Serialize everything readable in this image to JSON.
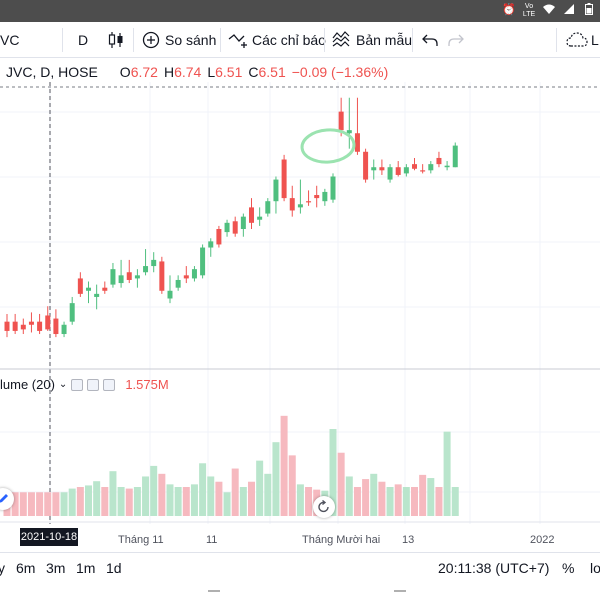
{
  "status_bar": {
    "time": "",
    "icons": [
      "alarm-icon",
      "wifi-icon",
      "lte-signal-icon",
      "battery-icon"
    ],
    "network_tag": "Vo LTE"
  },
  "toolbar": {
    "symbol": "VC",
    "interval": "D",
    "compare_label": "So sánh",
    "indicators_label": "Các chỉ báo",
    "templates_label": "Bản mẫu",
    "right_partial": "L"
  },
  "legend": {
    "title": "JVC, D, HOSE",
    "o_key": "O",
    "o_val": "6.72",
    "h_key": "H",
    "h_val": "6.74",
    "l_key": "L",
    "l_val": "6.51",
    "c_key": "C",
    "c_val": "6.51",
    "change": "−0.09 (−1.36%)"
  },
  "volume_legend": {
    "label": "lume (20)",
    "value": "1.575M"
  },
  "time_axis": {
    "crosshair_date": "2021-10-18",
    "labels": [
      "Tháng 11",
      "11",
      "Tháng Mười hai",
      "13",
      "2022"
    ]
  },
  "bottom_bar": {
    "ranges": [
      "y",
      "6m",
      "3m",
      "1m",
      "1d"
    ],
    "clock": "20:11:38 (UTC+7)",
    "percent": "%",
    "log": "lo"
  },
  "colors": {
    "up": "#26a69a",
    "up_fill": "#4fbf7f",
    "down": "#ef5350",
    "vol_up": "#b9e5cc",
    "vol_down": "#f6b9bf",
    "annotation": "#9be3b0"
  },
  "chart_data": {
    "type": "candlestick",
    "candles": [
      {
        "o": 5.5,
        "h": 5.55,
        "l": 5.4,
        "c": 5.44,
        "d": true
      },
      {
        "o": 5.5,
        "h": 5.55,
        "l": 5.42,
        "c": 5.44,
        "d": true
      },
      {
        "o": 5.48,
        "h": 5.52,
        "l": 5.42,
        "c": 5.45,
        "d": true
      },
      {
        "o": 5.5,
        "h": 5.56,
        "l": 5.43,
        "c": 5.48,
        "d": true
      },
      {
        "o": 5.5,
        "h": 5.55,
        "l": 5.42,
        "c": 5.44,
        "d": true
      },
      {
        "o": 5.54,
        "h": 5.6,
        "l": 5.44,
        "c": 5.45,
        "d": true
      },
      {
        "o": 5.52,
        "h": 5.58,
        "l": 5.4,
        "c": 5.42,
        "d": true
      },
      {
        "o": 5.42,
        "h": 5.5,
        "l": 5.4,
        "c": 5.48,
        "d": false
      },
      {
        "o": 5.5,
        "h": 5.66,
        "l": 5.48,
        "c": 5.62,
        "d": false
      },
      {
        "o": 5.78,
        "h": 5.82,
        "l": 5.66,
        "c": 5.68,
        "d": true
      },
      {
        "o": 5.7,
        "h": 5.76,
        "l": 5.62,
        "c": 5.72,
        "d": false
      },
      {
        "o": 5.66,
        "h": 5.74,
        "l": 5.58,
        "c": 5.68,
        "d": false
      },
      {
        "o": 5.72,
        "h": 5.76,
        "l": 5.68,
        "c": 5.7,
        "d": true
      },
      {
        "o": 5.74,
        "h": 5.88,
        "l": 5.72,
        "c": 5.84,
        "d": false
      },
      {
        "o": 5.75,
        "h": 5.9,
        "l": 5.72,
        "c": 5.8,
        "d": false
      },
      {
        "o": 5.82,
        "h": 5.9,
        "l": 5.75,
        "c": 5.77,
        "d": true
      },
      {
        "o": 5.78,
        "h": 5.84,
        "l": 5.72,
        "c": 5.8,
        "d": false
      },
      {
        "o": 5.82,
        "h": 5.97,
        "l": 5.8,
        "c": 5.86,
        "d": false
      },
      {
        "o": 5.86,
        "h": 5.95,
        "l": 5.82,
        "c": 5.9,
        "d": false
      },
      {
        "o": 5.89,
        "h": 5.92,
        "l": 5.68,
        "c": 5.7,
        "d": true
      },
      {
        "o": 5.65,
        "h": 5.8,
        "l": 5.62,
        "c": 5.7,
        "d": false
      },
      {
        "o": 5.72,
        "h": 5.8,
        "l": 5.7,
        "c": 5.77,
        "d": false
      },
      {
        "o": 5.8,
        "h": 5.86,
        "l": 5.75,
        "c": 5.78,
        "d": true
      },
      {
        "o": 5.78,
        "h": 5.86,
        "l": 5.76,
        "c": 5.84,
        "d": false
      },
      {
        "o": 5.8,
        "h": 6.0,
        "l": 5.78,
        "c": 5.98,
        "d": false
      },
      {
        "o": 5.98,
        "h": 6.04,
        "l": 5.92,
        "c": 6.02,
        "d": false
      },
      {
        "o": 6.1,
        "h": 6.12,
        "l": 5.98,
        "c": 6.0,
        "d": true
      },
      {
        "o": 6.08,
        "h": 6.16,
        "l": 6.05,
        "c": 6.14,
        "d": false
      },
      {
        "o": 6.15,
        "h": 6.18,
        "l": 6.05,
        "c": 6.07,
        "d": true
      },
      {
        "o": 6.1,
        "h": 6.2,
        "l": 6.05,
        "c": 6.18,
        "d": false
      },
      {
        "o": 6.24,
        "h": 6.3,
        "l": 6.1,
        "c": 6.14,
        "d": true
      },
      {
        "o": 6.16,
        "h": 6.24,
        "l": 6.12,
        "c": 6.18,
        "d": false
      },
      {
        "o": 6.2,
        "h": 6.3,
        "l": 6.18,
        "c": 6.28,
        "d": false
      },
      {
        "o": 6.28,
        "h": 6.44,
        "l": 6.2,
        "c": 6.42,
        "d": false
      },
      {
        "o": 6.55,
        "h": 6.58,
        "l": 6.28,
        "c": 6.3,
        "d": true
      },
      {
        "o": 6.3,
        "h": 6.38,
        "l": 6.18,
        "c": 6.22,
        "d": true
      },
      {
        "o": 6.24,
        "h": 6.42,
        "l": 6.2,
        "c": 6.26,
        "d": false
      },
      {
        "o": 6.28,
        "h": 6.35,
        "l": 6.25,
        "c": 6.28,
        "d": true
      },
      {
        "o": 6.32,
        "h": 6.38,
        "l": 6.24,
        "c": 6.3,
        "d": true
      },
      {
        "o": 6.28,
        "h": 6.36,
        "l": 6.25,
        "c": 6.34,
        "d": false
      },
      {
        "o": 6.29,
        "h": 6.46,
        "l": 6.27,
        "c": 6.44,
        "d": false
      },
      {
        "o": 6.74,
        "h": 6.95,
        "l": 6.7,
        "c": 6.86,
        "d": true
      },
      {
        "o": 6.72,
        "h": 6.95,
        "l": 6.62,
        "c": 6.74,
        "d": false
      },
      {
        "o": 6.72,
        "h": 6.95,
        "l": 6.58,
        "c": 6.6,
        "d": true
      },
      {
        "o": 6.6,
        "h": 6.62,
        "l": 6.4,
        "c": 6.42,
        "d": true
      },
      {
        "o": 6.5,
        "h": 6.55,
        "l": 6.42,
        "c": 6.48,
        "d": false
      },
      {
        "o": 6.5,
        "h": 6.55,
        "l": 6.45,
        "c": 6.48,
        "d": true
      },
      {
        "o": 6.42,
        "h": 6.52,
        "l": 6.4,
        "c": 6.5,
        "d": false
      },
      {
        "o": 6.5,
        "h": 6.54,
        "l": 6.44,
        "c": 6.45,
        "d": true
      },
      {
        "o": 6.46,
        "h": 6.52,
        "l": 6.44,
        "c": 6.5,
        "d": false
      },
      {
        "o": 6.52,
        "h": 6.56,
        "l": 6.48,
        "c": 6.49,
        "d": true
      },
      {
        "o": 6.48,
        "h": 6.52,
        "l": 6.46,
        "c": 6.48,
        "d": true
      },
      {
        "o": 6.48,
        "h": 6.54,
        "l": 6.46,
        "c": 6.52,
        "d": false
      },
      {
        "o": 6.56,
        "h": 6.6,
        "l": 6.5,
        "c": 6.52,
        "d": true
      },
      {
        "o": 6.51,
        "h": 6.54,
        "l": 6.48,
        "c": 6.5,
        "d": false
      },
      {
        "o": 6.5,
        "h": 6.66,
        "l": 6.5,
        "c": 6.64,
        "d": false
      }
    ],
    "volumes": [
      0.45,
      0.45,
      0.45,
      0.45,
      0.45,
      0.45,
      0.45,
      0.45,
      0.52,
      0.55,
      0.58,
      0.66,
      0.55,
      0.85,
      0.55,
      0.52,
      0.55,
      0.75,
      0.95,
      0.8,
      0.6,
      0.55,
      0.55,
      0.6,
      1.0,
      0.75,
      0.65,
      0.45,
      0.9,
      0.55,
      0.65,
      1.05,
      0.8,
      1.4,
      1.9,
      1.15,
      0.6,
      0.55,
      0.5,
      0.48,
      1.65,
      1.2,
      0.75,
      0.55,
      0.7,
      0.8,
      0.65,
      0.55,
      0.6,
      0.55,
      0.55,
      0.78,
      0.72,
      0.55,
      1.6,
      0.55
    ],
    "y_range": [
      5.2,
      7.0
    ],
    "vol_range": [
      0,
      2.2
    ],
    "last_price": 6.72
  }
}
